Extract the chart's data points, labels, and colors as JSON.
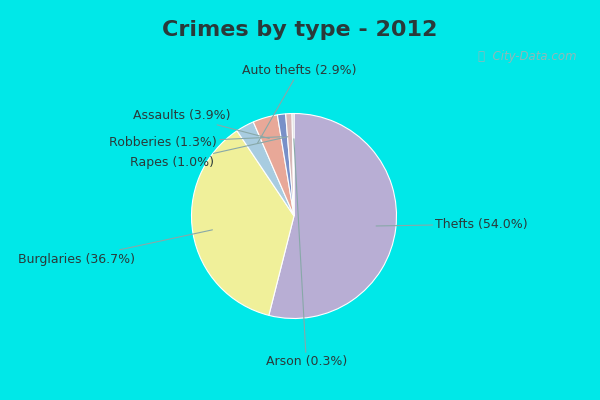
{
  "title": "Crimes by type - 2012",
  "labels": [
    "Thefts",
    "Burglaries",
    "Auto thefts",
    "Assaults",
    "Robberies",
    "Rapes",
    "Arson"
  ],
  "values": [
    54.0,
    36.7,
    2.9,
    3.9,
    1.3,
    1.0,
    0.3
  ],
  "colors": [
    "#b8aed4",
    "#f0f09a",
    "#a8cce0",
    "#e8a898",
    "#7890c8",
    "#d8b8b8",
    "#c8c8c8"
  ],
  "border_color": "#00e8e8",
  "background_color": "#d0e8dc",
  "title_color": "#2a3a3a",
  "title_fontsize": 16,
  "label_fontsize": 9,
  "label_color": "#2a3a3a",
  "watermark_color": "#90b8b8"
}
